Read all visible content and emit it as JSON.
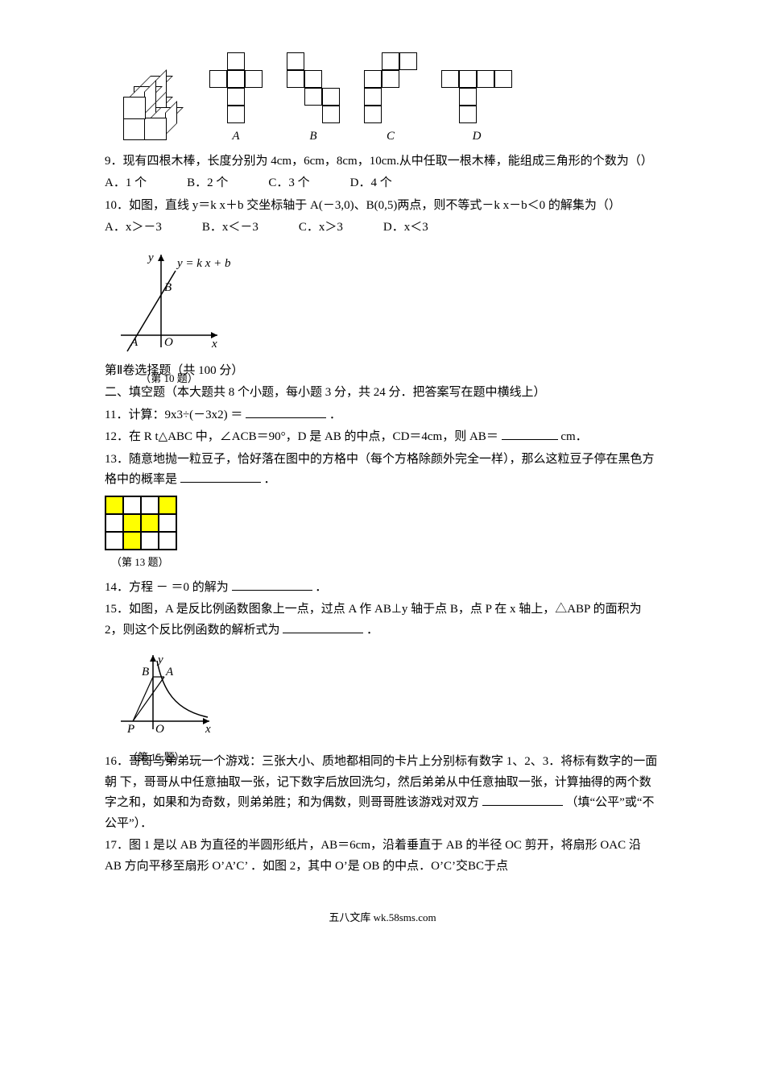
{
  "q8": {
    "labels": {
      "A": "A",
      "B": "B",
      "C": "C",
      "D": "D"
    }
  },
  "q9": {
    "text": "9．现有四根木棒，长度分别为 4cm，6cm，8cm，10cm.从中任取一根木棒，能组成三角形的个数为（）",
    "A": "A．1 个",
    "B": "B．2 个",
    "C": "C．3 个",
    "D": "D．4 个"
  },
  "q10": {
    "text": "10．如图，直线 y＝k x＋b 交坐标轴于 A(－3,0)、B(0,5)两点，则不等式－k x－b＜0 的解集为（）",
    "A": "A．x＞－3",
    "B": "B．x＜－3",
    "C": "C．x＞3",
    "D": "D．x＜3",
    "graph": {
      "eq": "y = k x + b",
      "ylabel": "y",
      "xlabel": "x",
      "Alabel": "A",
      "Blabel": "B",
      "Olabel": "O"
    },
    "caption": "（第 10 题）"
  },
  "sec2": {
    "head1": "第Ⅱ卷选择题（共 100 分）",
    "head2": "二、填空题（本大题共 8 个小题，每小题 3 分，共 24 分．把答案写在题中横线上）"
  },
  "q11": {
    "text": "11．计算：9x3÷(－3x2) ＝",
    "tail": "．"
  },
  "q12": {
    "text": "12．在 R t△ABC 中，∠ACB＝90°，D 是 AB 的中点，CD＝4cm，则 AB＝",
    "tail": " cm．"
  },
  "q13": {
    "text": "13．随意地抛一粒豆子，恰好落在图中的方格中（每个方格除颜外完全一样），那么这粒豆子停在黑色方格中的概率是",
    "tail": "．",
    "caption": "（第 13 题）",
    "cells": [
      [
        "y",
        "w",
        "w",
        "y"
      ],
      [
        "w",
        "y",
        "y",
        "w"
      ],
      [
        "w",
        "y",
        "w",
        "w"
      ]
    ]
  },
  "q14": {
    "text": "14．方程 －  ＝0 的解为",
    "tail": "．"
  },
  "q15": {
    "text": "15．如图，A 是反比例函数图象上一点，过点 A 作 AB⊥y 轴于点 B，点 P 在 x 轴上，△ABP 的面积为 2，则这个反比例函数的解析式为",
    "tail": "．",
    "caption": "（第 15 题）",
    "labels": {
      "y": "y",
      "x": "x",
      "A": "A",
      "B": "B",
      "P": "P",
      "O": "O"
    }
  },
  "q16": {
    "text1": "16．哥哥与弟弟玩一个游戏：三张大小、质地都相同的卡片上分别标有数字 1、2、3．将标有数字的一面朝  下，哥哥从中任意抽取一张，记下数字后放回洗匀，然后弟弟从中任意抽取一张，计算抽得的两个数字之和，如果和为奇数，则弟弟胜；和为偶数，则哥哥胜该游戏对双方",
    "text2": "（填“公平”或“不公平”）．"
  },
  "q17": {
    "text": "17．图 1 是以 AB 为直径的半圆形纸片，AB＝6cm，沿着垂直于 AB 的半径 OC 剪开，将扇形 OAC 沿 AB 方向平移至扇形 O’A’C’ ．如图 2，其中 O’是 OB 的中点．O’C’交BC于点"
  },
  "footer": "五八文库 wk.58sms.com"
}
